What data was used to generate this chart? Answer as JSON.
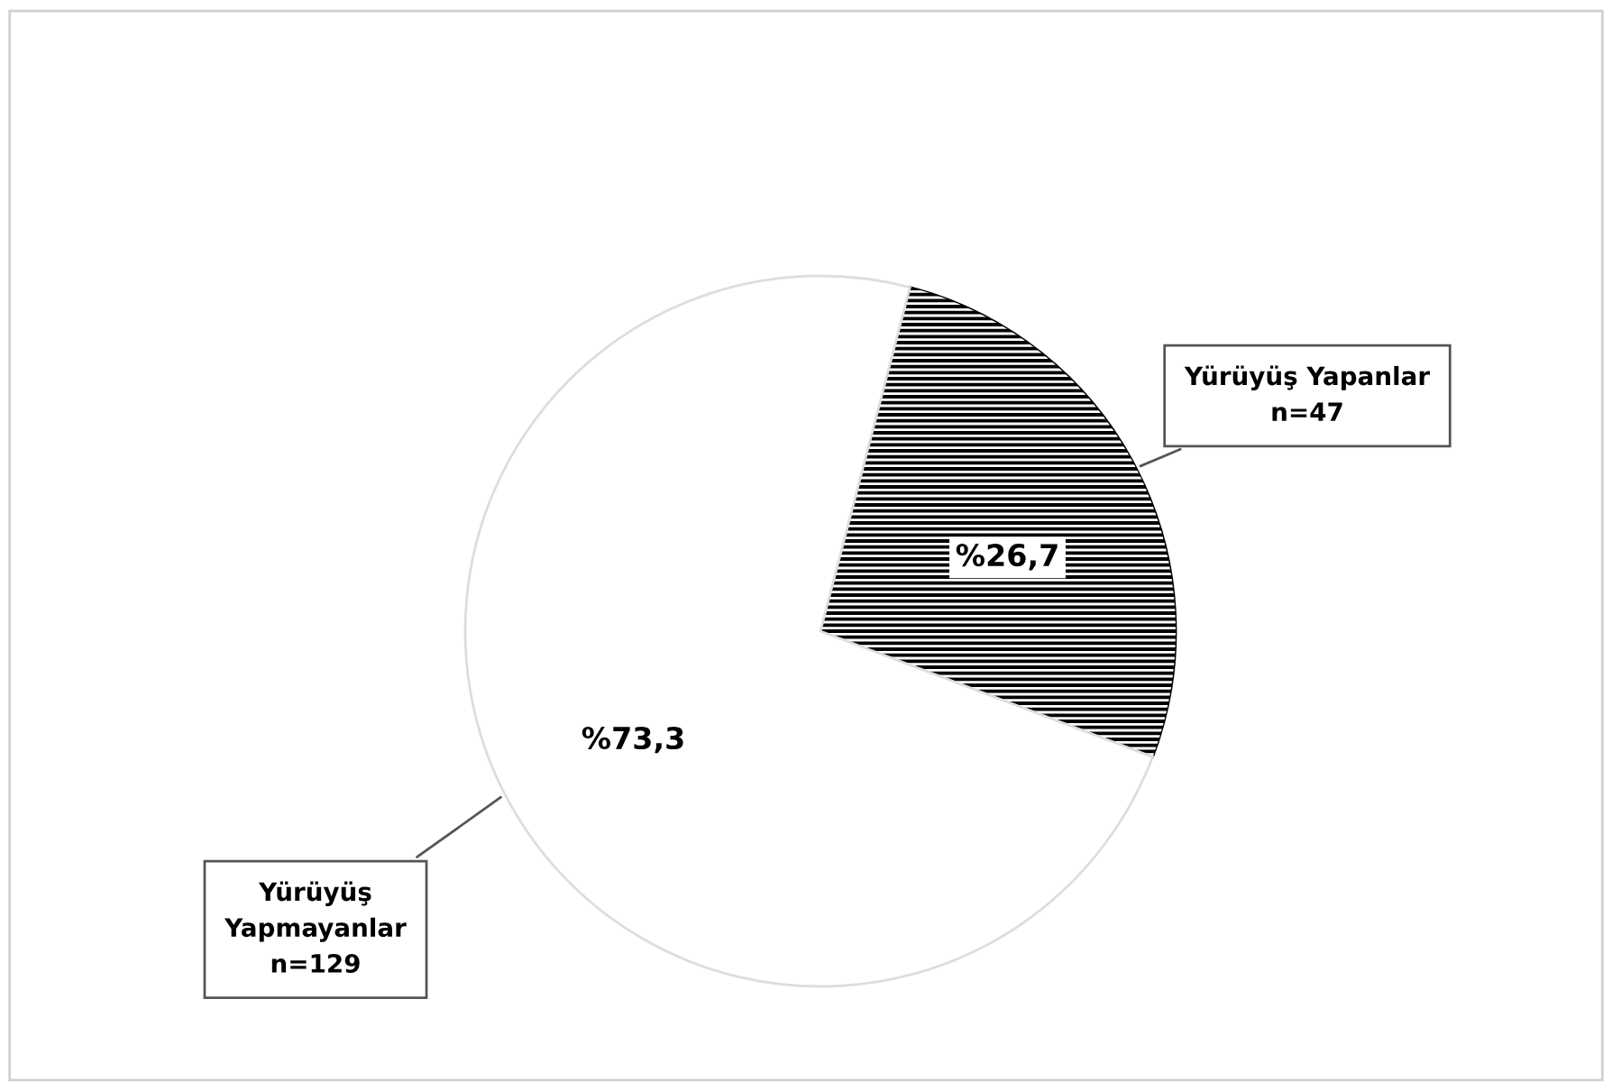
{
  "chart_data": {
    "type": "pie",
    "categories": [
      "Yürüyüş Yapanlar\nn=47",
      "Yürüyüş\nYapmayanlar\nn=129"
    ],
    "values": [
      26.7,
      73.3
    ],
    "value_labels": [
      "%26,7",
      "%73,3"
    ],
    "colors": [
      "#000000",
      "#ffffff"
    ],
    "legend": false
  }
}
